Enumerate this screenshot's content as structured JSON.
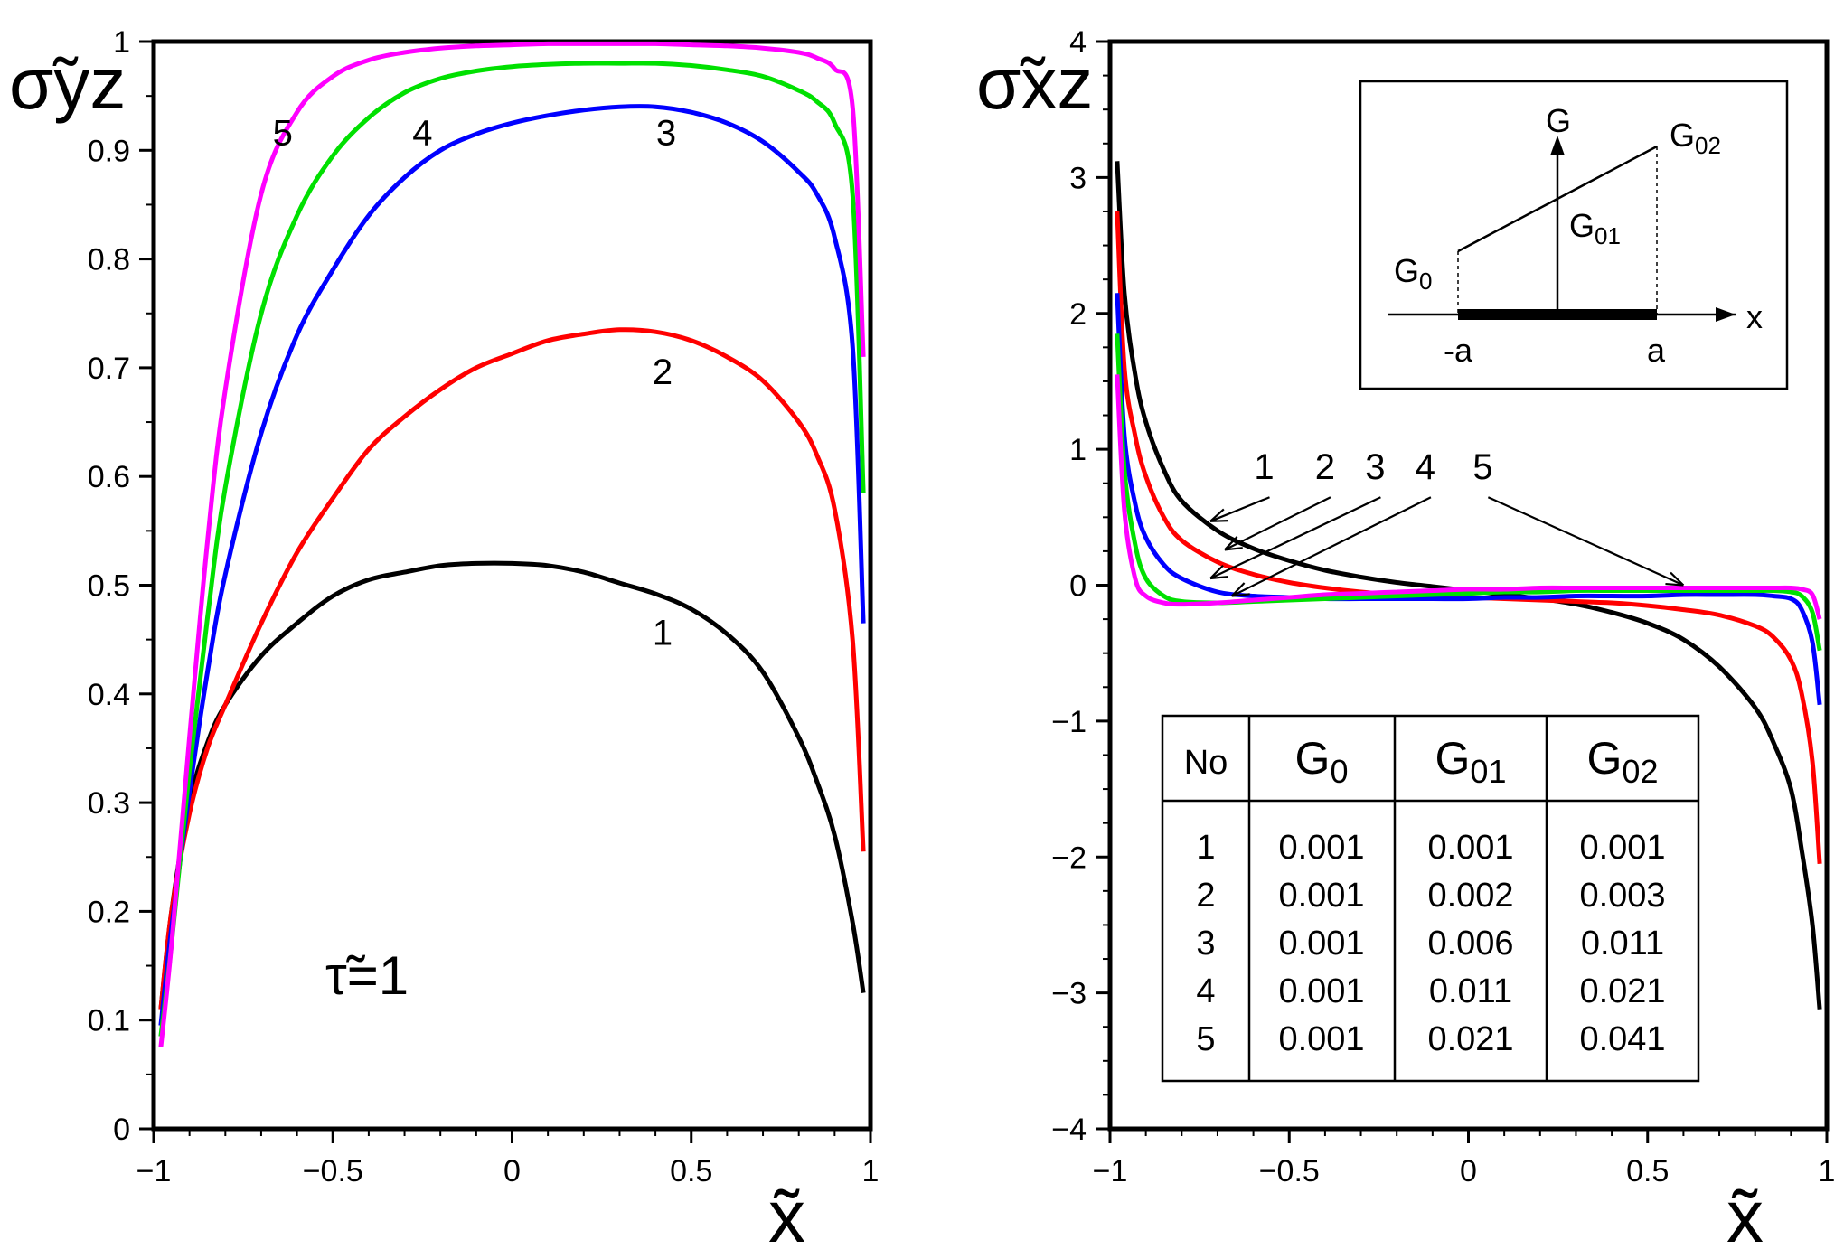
{
  "chart_data": [
    {
      "type": "line",
      "panel": "left",
      "ylabel": "σ̃yz",
      "xlabel": "x̃",
      "annotation": "τ̃=1",
      "xlim": [
        -1,
        1
      ],
      "ylim": [
        0,
        1
      ],
      "x_ticks": [
        "−1",
        "−0.5",
        "0",
        "0.5",
        "1"
      ],
      "y_ticks": [
        "0",
        "0.1",
        "0.2",
        "0.3",
        "0.4",
        "0.5",
        "0.6",
        "0.7",
        "0.8",
        "0.9",
        "1"
      ],
      "series": [
        {
          "name": "1",
          "color": "#000000",
          "x": [
            -0.98,
            -0.95,
            -0.9,
            -0.85,
            -0.8,
            -0.7,
            -0.6,
            -0.5,
            -0.4,
            -0.3,
            -0.2,
            -0.1,
            0,
            0.1,
            0.2,
            0.3,
            0.4,
            0.5,
            0.6,
            0.7,
            0.8,
            0.85,
            0.9,
            0.95,
            0.98
          ],
          "y": [
            0.11,
            0.2,
            0.3,
            0.355,
            0.39,
            0.435,
            0.465,
            0.49,
            0.505,
            0.512,
            0.518,
            0.52,
            0.52,
            0.518,
            0.512,
            0.502,
            0.492,
            0.478,
            0.455,
            0.42,
            0.36,
            0.32,
            0.27,
            0.19,
            0.125
          ]
        },
        {
          "name": "2",
          "color": "#ff0000",
          "x": [
            -0.98,
            -0.95,
            -0.9,
            -0.85,
            -0.8,
            -0.7,
            -0.6,
            -0.5,
            -0.4,
            -0.3,
            -0.2,
            -0.1,
            0,
            0.1,
            0.2,
            0.3,
            0.4,
            0.5,
            0.6,
            0.7,
            0.8,
            0.85,
            0.9,
            0.95,
            0.98
          ],
          "y": [
            0.11,
            0.2,
            0.29,
            0.35,
            0.39,
            0.465,
            0.53,
            0.58,
            0.625,
            0.655,
            0.68,
            0.7,
            0.713,
            0.725,
            0.731,
            0.735,
            0.733,
            0.725,
            0.71,
            0.688,
            0.65,
            0.62,
            0.57,
            0.45,
            0.255
          ]
        },
        {
          "name": "3",
          "color": "#0000ff",
          "x": [
            -0.98,
            -0.95,
            -0.9,
            -0.85,
            -0.8,
            -0.7,
            -0.6,
            -0.5,
            -0.4,
            -0.3,
            -0.2,
            -0.1,
            0,
            0.1,
            0.2,
            0.3,
            0.4,
            0.5,
            0.6,
            0.7,
            0.8,
            0.85,
            0.9,
            0.95,
            0.98
          ],
          "y": [
            0.095,
            0.185,
            0.31,
            0.42,
            0.51,
            0.64,
            0.73,
            0.79,
            0.84,
            0.875,
            0.9,
            0.915,
            0.925,
            0.932,
            0.937,
            0.94,
            0.94,
            0.935,
            0.925,
            0.908,
            0.88,
            0.86,
            0.82,
            0.72,
            0.465
          ]
        },
        {
          "name": "4",
          "color": "#00e000",
          "x": [
            -0.98,
            -0.95,
            -0.9,
            -0.85,
            -0.8,
            -0.7,
            -0.6,
            -0.5,
            -0.4,
            -0.3,
            -0.2,
            -0.1,
            0,
            0.1,
            0.2,
            0.3,
            0.4,
            0.5,
            0.6,
            0.7,
            0.8,
            0.85,
            0.9,
            0.95,
            0.98
          ],
          "y": [
            0.085,
            0.17,
            0.33,
            0.47,
            0.59,
            0.75,
            0.84,
            0.895,
            0.93,
            0.953,
            0.966,
            0.973,
            0.977,
            0.979,
            0.98,
            0.98,
            0.98,
            0.978,
            0.974,
            0.968,
            0.955,
            0.945,
            0.925,
            0.86,
            0.585
          ]
        },
        {
          "name": "5",
          "color": "#ff00ff",
          "x": [
            -0.98,
            -0.95,
            -0.9,
            -0.85,
            -0.8,
            -0.7,
            -0.6,
            -0.5,
            -0.4,
            -0.3,
            -0.2,
            -0.1,
            0,
            0.1,
            0.2,
            0.3,
            0.4,
            0.5,
            0.6,
            0.7,
            0.8,
            0.85,
            0.9,
            0.95,
            0.98
          ],
          "y": [
            0.075,
            0.17,
            0.36,
            0.54,
            0.68,
            0.86,
            0.935,
            0.968,
            0.983,
            0.99,
            0.994,
            0.996,
            0.997,
            0.998,
            0.998,
            0.998,
            0.998,
            0.997,
            0.996,
            0.994,
            0.99,
            0.985,
            0.975,
            0.94,
            0.71
          ]
        }
      ],
      "curve_labels": [
        {
          "text": "5",
          "x": -0.64,
          "y": 0.905
        },
        {
          "text": "4",
          "x": -0.25,
          "y": 0.905
        },
        {
          "text": "3",
          "x": 0.43,
          "y": 0.905
        },
        {
          "text": "2",
          "x": 0.42,
          "y": 0.685
        },
        {
          "text": "1",
          "x": 0.42,
          "y": 0.445
        }
      ]
    },
    {
      "type": "line",
      "panel": "right",
      "ylabel": "σ̃xz",
      "xlabel": "x̃",
      "xlim": [
        -1,
        1
      ],
      "ylim": [
        -4,
        4
      ],
      "x_ticks": [
        "−1",
        "−0.5",
        "0",
        "0.5",
        "1"
      ],
      "y_ticks": [
        "−4",
        "−3",
        "−2",
        "−1",
        "0",
        "1",
        "2",
        "3",
        "4"
      ],
      "series": [
        {
          "name": "1",
          "color": "#000000",
          "x": [
            -0.98,
            -0.96,
            -0.93,
            -0.9,
            -0.85,
            -0.8,
            -0.7,
            -0.6,
            -0.5,
            -0.4,
            -0.3,
            -0.2,
            -0.1,
            0,
            0.1,
            0.2,
            0.3,
            0.4,
            0.5,
            0.6,
            0.7,
            0.8,
            0.85,
            0.9,
            0.93,
            0.96,
            0.98
          ],
          "y": [
            3.12,
            2.15,
            1.55,
            1.2,
            0.85,
            0.62,
            0.4,
            0.27,
            0.18,
            0.11,
            0.06,
            0.02,
            -0.01,
            -0.04,
            -0.07,
            -0.1,
            -0.14,
            -0.2,
            -0.28,
            -0.4,
            -0.6,
            -0.9,
            -1.15,
            -1.5,
            -1.95,
            -2.5,
            -3.12
          ]
        },
        {
          "name": "2",
          "color": "#ff0000",
          "x": [
            -0.98,
            -0.96,
            -0.93,
            -0.9,
            -0.85,
            -0.8,
            -0.7,
            -0.6,
            -0.5,
            -0.4,
            -0.3,
            -0.2,
            -0.1,
            0,
            0.1,
            0.2,
            0.3,
            0.4,
            0.5,
            0.6,
            0.7,
            0.8,
            0.85,
            0.9,
            0.93,
            0.96,
            0.98
          ],
          "y": [
            2.75,
            1.6,
            1.1,
            0.8,
            0.5,
            0.33,
            0.17,
            0.08,
            0.02,
            -0.02,
            -0.05,
            -0.07,
            -0.08,
            -0.09,
            -0.1,
            -0.11,
            -0.12,
            -0.13,
            -0.15,
            -0.18,
            -0.22,
            -0.3,
            -0.38,
            -0.55,
            -0.8,
            -1.3,
            -2.05
          ]
        },
        {
          "name": "3",
          "color": "#0000ff",
          "x": [
            -0.98,
            -0.96,
            -0.93,
            -0.9,
            -0.85,
            -0.8,
            -0.7,
            -0.6,
            -0.5,
            -0.4,
            -0.3,
            -0.2,
            -0.1,
            0,
            0.1,
            0.2,
            0.3,
            0.4,
            0.5,
            0.6,
            0.7,
            0.8,
            0.85,
            0.9,
            0.93,
            0.96,
            0.98
          ],
          "y": [
            2.15,
            1.1,
            0.6,
            0.35,
            0.15,
            0.05,
            -0.05,
            -0.08,
            -0.09,
            -0.1,
            -0.1,
            -0.1,
            -0.1,
            -0.1,
            -0.09,
            -0.09,
            -0.08,
            -0.08,
            -0.08,
            -0.07,
            -0.07,
            -0.07,
            -0.08,
            -0.1,
            -0.18,
            -0.42,
            -0.88
          ]
        },
        {
          "name": "4",
          "color": "#00e000",
          "x": [
            -0.98,
            -0.96,
            -0.93,
            -0.9,
            -0.85,
            -0.8,
            -0.7,
            -0.6,
            -0.5,
            -0.4,
            -0.3,
            -0.2,
            -0.1,
            0,
            0.1,
            0.2,
            0.3,
            0.4,
            0.5,
            0.6,
            0.7,
            0.8,
            0.85,
            0.9,
            0.93,
            0.96,
            0.98
          ],
          "y": [
            1.85,
            0.85,
            0.3,
            0.05,
            -0.08,
            -0.12,
            -0.13,
            -0.12,
            -0.11,
            -0.1,
            -0.09,
            -0.08,
            -0.07,
            -0.06,
            -0.05,
            -0.05,
            -0.04,
            -0.04,
            -0.04,
            -0.04,
            -0.04,
            -0.04,
            -0.04,
            -0.05,
            -0.08,
            -0.2,
            -0.48
          ]
        },
        {
          "name": "5",
          "color": "#ff00ff",
          "x": [
            -0.98,
            -0.96,
            -0.93,
            -0.9,
            -0.85,
            -0.8,
            -0.7,
            -0.6,
            -0.5,
            -0.4,
            -0.3,
            -0.2,
            -0.1,
            0,
            0.1,
            0.2,
            0.3,
            0.4,
            0.5,
            0.6,
            0.7,
            0.8,
            0.85,
            0.9,
            0.93,
            0.96,
            0.98
          ],
          "y": [
            1.55,
            0.55,
            0.05,
            -0.08,
            -0.13,
            -0.14,
            -0.13,
            -0.11,
            -0.09,
            -0.07,
            -0.06,
            -0.05,
            -0.04,
            -0.03,
            -0.03,
            -0.02,
            -0.02,
            -0.02,
            -0.02,
            -0.02,
            -0.02,
            -0.02,
            -0.02,
            -0.02,
            -0.03,
            -0.07,
            -0.25
          ]
        }
      ],
      "curve_labels": [
        {
          "text": "1",
          "x": -0.57,
          "y": 0.78,
          "target_x": -0.72,
          "target_y": 0.47
        },
        {
          "text": "2",
          "x": -0.4,
          "y": 0.78,
          "target_x": -0.68,
          "target_y": 0.26
        },
        {
          "text": "3",
          "x": -0.26,
          "y": 0.78,
          "target_x": -0.72,
          "target_y": 0.05
        },
        {
          "text": "4",
          "x": -0.12,
          "y": 0.78,
          "target_x": -0.66,
          "target_y": -0.08
        },
        {
          "text": "5",
          "x": 0.04,
          "y": 0.78,
          "target_x": 0.6,
          "target_y": 0.0
        }
      ]
    }
  ],
  "inset": {
    "axis_g": "G",
    "axis_x": "x",
    "g0": "G",
    "g0_sub": "0",
    "g01": "G",
    "g01_sub": "01",
    "g02": "G",
    "g02_sub": "02",
    "minus_a": "-a",
    "a": "a"
  },
  "table": {
    "headers": [
      {
        "text": "No",
        "sub": ""
      },
      {
        "text": "G",
        "sub": "0"
      },
      {
        "text": "G",
        "sub": "01"
      },
      {
        "text": "G",
        "sub": "02"
      }
    ],
    "rows": [
      [
        "1",
        "0.001",
        "0.001",
        "0.001"
      ],
      [
        "2",
        "0.001",
        "0.002",
        "0.003"
      ],
      [
        "3",
        "0.001",
        "0.006",
        "0.011"
      ],
      [
        "4",
        "0.001",
        "0.011",
        "0.021"
      ],
      [
        "5",
        "0.001",
        "0.021",
        "0.041"
      ]
    ]
  }
}
